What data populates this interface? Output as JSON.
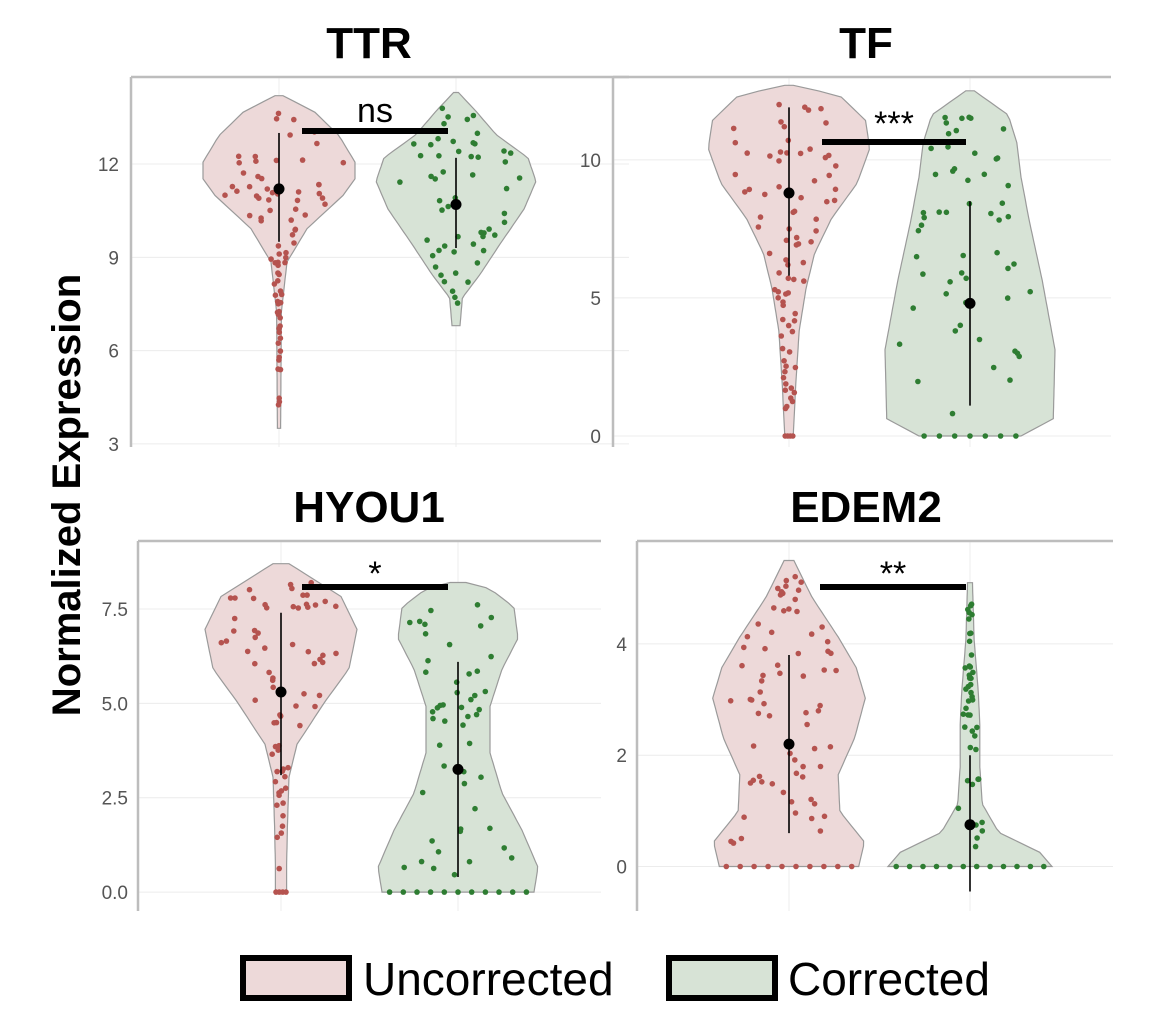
{
  "figure": {
    "ylabel": "Normalized Expression",
    "legend": [
      {
        "label": "Uncorrected",
        "color": "#edd9d9"
      },
      {
        "label": "Corrected",
        "color": "#d7e3d6"
      }
    ]
  },
  "colors": {
    "uncorrected_fill": "#edd9d9",
    "corrected_fill": "#d7e3d6",
    "uncorrected_point": "#b5534f",
    "corrected_point": "#2e7d32",
    "violin_outline": "#9a9a9a",
    "summary": "#000000"
  },
  "chart_data": [
    {
      "type": "violin",
      "title": "TTR",
      "categories": [
        "Uncorrected",
        "Corrected"
      ],
      "ylim": [
        2.9,
        14.8
      ],
      "yticks": [
        3,
        6,
        9,
        12
      ],
      "ytick_labels": [
        "3",
        "6",
        "9",
        "12"
      ],
      "significance": "ns",
      "series": [
        {
          "name": "Uncorrected",
          "mean": 11.2,
          "sd_low": 9.5,
          "sd_high": 13.0,
          "min": 3.5,
          "max": 14.2,
          "points": 80
        },
        {
          "name": "Corrected",
          "mean": 10.7,
          "sd_low": 9.3,
          "sd_high": 12.2,
          "min": 6.8,
          "max": 14.3,
          "points": 55
        }
      ]
    },
    {
      "type": "violin",
      "title": "TF",
      "categories": [
        "Uncorrected",
        "Corrected"
      ],
      "ylim": [
        -0.4,
        13.0
      ],
      "yticks": [
        0,
        5,
        10
      ],
      "ytick_labels": [
        "0",
        "5",
        "10"
      ],
      "significance": "***",
      "series": [
        {
          "name": "Uncorrected",
          "mean": 8.8,
          "sd_low": 5.8,
          "sd_high": 11.9,
          "min": 0,
          "max": 12.7,
          "points": 80
        },
        {
          "name": "Corrected",
          "mean": 4.8,
          "sd_low": 1.1,
          "sd_high": 8.5,
          "min": 0,
          "max": 12.5,
          "points": 55
        }
      ]
    },
    {
      "type": "violin",
      "title": "HYOU1",
      "categories": [
        "Uncorrected",
        "Corrected"
      ],
      "ylim": [
        -0.5,
        9.3
      ],
      "yticks": [
        0,
        2.5,
        5,
        7.5
      ],
      "ytick_labels": [
        "0.0",
        "2.5",
        "5.0",
        "7.5"
      ],
      "significance": "*",
      "series": [
        {
          "name": "Uncorrected",
          "mean": 5.3,
          "sd_low": 3.1,
          "sd_high": 7.4,
          "min": 0,
          "max": 8.7,
          "points": 70
        },
        {
          "name": "Corrected",
          "mean": 3.25,
          "sd_low": 0.4,
          "sd_high": 6.1,
          "min": 0,
          "max": 8.2,
          "points": 50
        }
      ]
    },
    {
      "type": "violin",
      "title": "EDEM2",
      "categories": [
        "Uncorrected",
        "Corrected"
      ],
      "ylim": [
        -0.8,
        5.85
      ],
      "yticks": [
        0,
        2,
        4
      ],
      "ytick_labels": [
        "0",
        "2",
        "4"
      ],
      "significance": "**",
      "series": [
        {
          "name": "Uncorrected",
          "mean": 2.2,
          "sd_low": 0.6,
          "sd_high": 3.8,
          "min": 0,
          "max": 5.5,
          "points": 70
        },
        {
          "name": "Corrected",
          "mean": 0.75,
          "sd_low": -0.45,
          "sd_high": 2.0,
          "min": 0,
          "max": 5.1,
          "points": 45
        }
      ]
    }
  ]
}
